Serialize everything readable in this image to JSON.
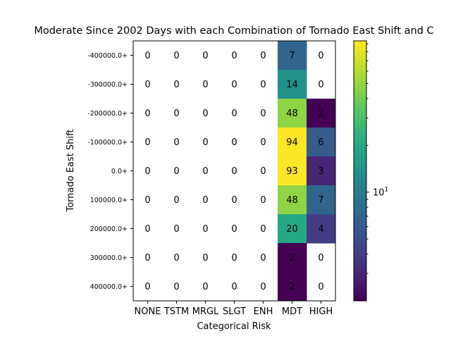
{
  "chart_data": {
    "type": "heatmap",
    "title": "Moderate Since 2002 Days with each Combination of Tornado East Shift and C",
    "xlabel": "Categorical Risk",
    "ylabel": "Tornado East Shift",
    "x_categories": [
      "NONE",
      "TSTM",
      "MRGL",
      "SLGT",
      "ENH",
      "MDT",
      "HIGH"
    ],
    "y_categories": [
      "-400000.0+",
      "-300000.0+",
      "-200000.0+",
      "-100000.0+",
      "0.0+",
      "100000.0+",
      "200000.0+",
      "300000.0+",
      "400000.0+"
    ],
    "values": [
      [
        0,
        0,
        0,
        0,
        0,
        7,
        0
      ],
      [
        0,
        0,
        0,
        0,
        0,
        14,
        0
      ],
      [
        0,
        0,
        0,
        0,
        0,
        48,
        2
      ],
      [
        0,
        0,
        0,
        0,
        0,
        94,
        6
      ],
      [
        0,
        0,
        0,
        0,
        0,
        93,
        3
      ],
      [
        0,
        0,
        0,
        0,
        0,
        48,
        7
      ],
      [
        0,
        0,
        0,
        0,
        0,
        20,
        4
      ],
      [
        0,
        0,
        0,
        0,
        0,
        2,
        0
      ],
      [
        0,
        0,
        0,
        0,
        0,
        2,
        0
      ]
    ],
    "colorscale": "viridis",
    "color_scale_type": "log",
    "color_range": [
      2,
      94
    ],
    "zero_cells": "white (not colored)",
    "colorbar": {
      "position": "right",
      "tick_labels": [
        "10^1"
      ]
    },
    "grid": false
  }
}
